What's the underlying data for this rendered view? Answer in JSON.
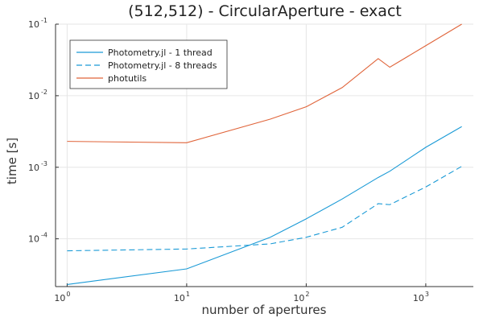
{
  "chart_data": {
    "type": "line",
    "title": "(512,512) - CircularAperture - exact",
    "xlabel": "number of apertures",
    "ylabel": "time [s]",
    "x_scale": "log",
    "y_scale": "log",
    "xlim": [
      0.8,
      2500
    ],
    "ylim": [
      2.15e-05,
      0.1
    ],
    "grid": true,
    "legend_position": "top-left",
    "x_ticks": [
      {
        "base": "10",
        "exp": "0",
        "value": 1
      },
      {
        "base": "10",
        "exp": "1",
        "value": 10
      },
      {
        "base": "10",
        "exp": "2",
        "value": 100
      },
      {
        "base": "10",
        "exp": "3",
        "value": 1000
      }
    ],
    "y_ticks": [
      {
        "base": "10",
        "exp": "-4",
        "value": 0.0001
      },
      {
        "base": "10",
        "exp": "-3",
        "value": 0.001
      },
      {
        "base": "10",
        "exp": "-2",
        "value": 0.01
      },
      {
        "base": "10",
        "exp": "-1",
        "value": 0.1
      }
    ],
    "series": [
      {
        "name": "Photometry.jl - 1 thread",
        "color": "#1a9ad6",
        "dash": "solid",
        "x": [
          1,
          10,
          50,
          100,
          200,
          400,
          500,
          1000,
          2000
        ],
        "y": [
          2.3e-05,
          3.8e-05,
          0.000105,
          0.00019,
          0.00036,
          0.00072,
          0.00088,
          0.0019,
          0.0037
        ]
      },
      {
        "name": "Photometry.jl - 8 threads",
        "color": "#1a9ad6",
        "dash": "dashed",
        "x": [
          1,
          10,
          50,
          100,
          200,
          400,
          500,
          1000,
          2000
        ],
        "y": [
          6.8e-05,
          7.2e-05,
          8.5e-05,
          0.000105,
          0.000145,
          0.00031,
          0.0003,
          0.00053,
          0.00103
        ]
      },
      {
        "name": "photutils",
        "color": "#e0643a",
        "dash": "solid",
        "x": [
          1,
          10,
          50,
          100,
          200,
          400,
          500,
          1000,
          2000
        ],
        "y": [
          0.0023,
          0.0022,
          0.0047,
          0.007,
          0.013,
          0.033,
          0.025,
          0.05,
          0.1
        ]
      }
    ]
  }
}
